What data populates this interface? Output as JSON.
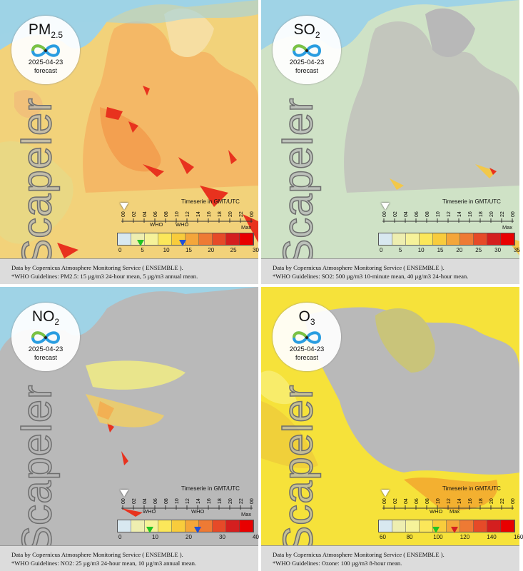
{
  "footer": {
    "line1": "Data by Copernicus Atmosphere Monitoring Service ( ENSEMBLE ).",
    "who_pm25": "*WHO Guidelines: PM2.5: 15 µg/m3 24-hour mean, 5 µg/m3 annual mean.",
    "who_so2": "*WHO Guidelines: SO2: 500 µg/m3 10-minute mean, 40 µg/m3 24-hour mean.",
    "who_no2": "*WHO Guidelines: NO2: 25 µg/m3 24-hour mean, 10 µg/m3 annual mean.",
    "who_o3": "*WHO Guidelines: Ozone: 100 µg/m3 8-hour mean."
  },
  "brand": {
    "watermark": "Scapeler"
  },
  "common": {
    "date": "2025-04-23",
    "forecast": "forecast",
    "timeserie": "Timeserie in GMT/UTC",
    "who": "WHO",
    "max": "Max"
  },
  "hours": [
    "00",
    "02",
    "04",
    "06",
    "08",
    "10",
    "12",
    "14",
    "16",
    "18",
    "20",
    "22",
    "00"
  ],
  "panels": [
    {
      "pollutant": "PM",
      "sub": "2.5",
      "ticks": [
        "0",
        "5",
        "10",
        "15",
        "20",
        "25",
        "30"
      ],
      "who_markers": [
        {
          "value": "5",
          "color": "#22c422"
        },
        {
          "value": "15",
          "color": "#1f4fd8"
        }
      ]
    },
    {
      "pollutant": "SO",
      "sub": "2",
      "ticks": [
        "0",
        "5",
        "10",
        "15",
        "20",
        "25",
        "30",
        "35"
      ],
      "who_markers": []
    },
    {
      "pollutant": "NO",
      "sub": "2",
      "ticks": [
        "0",
        "10",
        "20",
        "30",
        "40"
      ],
      "who_markers": [
        {
          "value": "10",
          "color": "#22c422"
        },
        {
          "value": "25",
          "color": "#1f4fd8"
        }
      ]
    },
    {
      "pollutant": "O",
      "sub": "3",
      "ticks": [
        "60",
        "80",
        "100",
        "120",
        "140",
        "160"
      ],
      "who_markers": [
        {
          "value": "100",
          "color": "#22c422"
        },
        {
          "value": "max",
          "color": "#d42020"
        }
      ]
    }
  ],
  "colors": {
    "sea": "#9fd3e6",
    "land_gray": "#b9b9b9",
    "scale": [
      "#d8e8f0",
      "#eeeeb0",
      "#f6f29a",
      "#fbe75a",
      "#f8cc3c",
      "#f4a63a",
      "#ee7a34",
      "#e64a28",
      "#d41f1f",
      "#e80000"
    ]
  }
}
